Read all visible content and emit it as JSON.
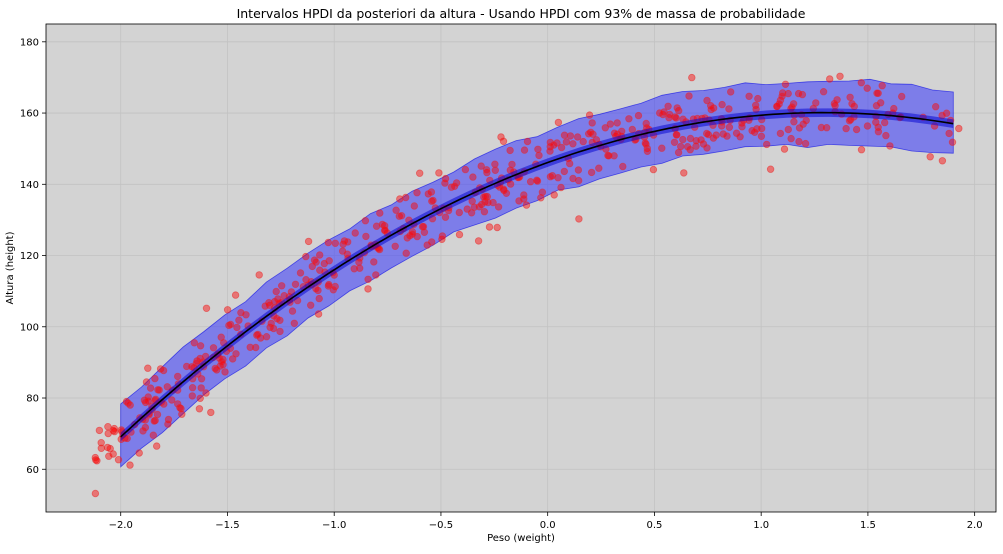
{
  "chart_data": {
    "type": "scatter",
    "title": "Intervalos HPDI da posteriori da altura - Usando  HPDI  com 93% de massa de probabilidade",
    "xlabel": "Peso (weight)",
    "ylabel": "Altura (height)",
    "xlim": [
      -2.35,
      2.1
    ],
    "ylim": [
      48,
      185
    ],
    "xticks": [
      -2.0,
      -1.5,
      -1.0,
      -0.5,
      0.0,
      0.5,
      1.0,
      1.5,
      2.0
    ],
    "xtick_labels": [
      "−2.0",
      "−1.5",
      "−1.0",
      "−0.5",
      "0.0",
      "0.5",
      "1.0",
      "1.5",
      "2.0"
    ],
    "yticks": [
      60,
      80,
      100,
      120,
      140,
      160,
      180
    ],
    "ytick_labels": [
      "60",
      "80",
      "100",
      "120",
      "140",
      "160",
      "180"
    ],
    "grid": true,
    "background": "#d3d3d3",
    "colors": {
      "points": "#ff0000",
      "mean_line": "#000000",
      "hpdi_band": "#0000ff"
    },
    "mean_curve": {
      "x_range": [
        -2.0,
        1.9
      ],
      "a": 146.1,
      "b1": 21.7,
      "b2": -8.4
    },
    "hpdi_mu_half_width": 1.2,
    "hpdi_height_half_width": 9.0,
    "points_curve": {
      "x_range": [
        -2.12,
        1.95
      ],
      "count": 544,
      "a": 146.1,
      "b1": 21.7,
      "b2": -8.4,
      "noise_sd": 5.0
    }
  }
}
